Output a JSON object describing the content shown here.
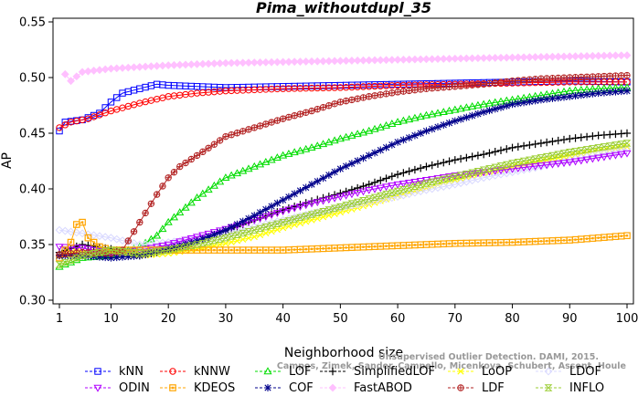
{
  "chart_data": {
    "type": "line",
    "title": "Pima_withoutdupl_35",
    "xlabel": "Neighborhood size",
    "ylabel": "AP",
    "xlim": [
      1,
      100
    ],
    "ylim": [
      0.3,
      0.55
    ],
    "x_ticks": [
      "1",
      "10",
      "20",
      "30",
      "40",
      "50",
      "60",
      "70",
      "80",
      "90",
      "100"
    ],
    "y_ticks": [
      "0.30",
      "0.35",
      "0.40",
      "0.45",
      "0.50",
      "0.55"
    ],
    "grid": false,
    "legend_position": "bottom",
    "watermark": [
      "Campos, Zimek, Sander, Campello, Micenkova, Schubert, Assent, Houle",
      "Unsupervised Outlier Detection. DAMI, 2015."
    ],
    "series": [
      {
        "name": "kNN",
        "color": "#0000ff",
        "marker": "square",
        "points": [
          [
            1,
            0.452
          ],
          [
            2,
            0.46
          ],
          [
            5,
            0.462
          ],
          [
            8,
            0.468
          ],
          [
            10,
            0.478
          ],
          [
            12,
            0.486
          ],
          [
            15,
            0.49
          ],
          [
            18,
            0.494
          ],
          [
            20,
            0.493
          ],
          [
            25,
            0.492
          ],
          [
            30,
            0.491
          ],
          [
            40,
            0.492
          ],
          [
            50,
            0.493
          ],
          [
            60,
            0.494
          ],
          [
            70,
            0.495
          ],
          [
            80,
            0.496
          ],
          [
            90,
            0.497
          ],
          [
            100,
            0.496
          ]
        ]
      },
      {
        "name": "kNNW",
        "color": "#ff0000",
        "marker": "circle",
        "points": [
          [
            1,
            0.455
          ],
          [
            3,
            0.46
          ],
          [
            6,
            0.463
          ],
          [
            10,
            0.47
          ],
          [
            15,
            0.477
          ],
          [
            20,
            0.483
          ],
          [
            25,
            0.486
          ],
          [
            30,
            0.488
          ],
          [
            40,
            0.49
          ],
          [
            50,
            0.491
          ],
          [
            60,
            0.493
          ],
          [
            70,
            0.494
          ],
          [
            80,
            0.495
          ],
          [
            90,
            0.496
          ],
          [
            100,
            0.496
          ]
        ]
      },
      {
        "name": "LOF",
        "color": "#00dd00",
        "marker": "triangle-up",
        "points": [
          [
            1,
            0.33
          ],
          [
            5,
            0.338
          ],
          [
            10,
            0.34
          ],
          [
            15,
            0.348
          ],
          [
            18,
            0.358
          ],
          [
            20,
            0.37
          ],
          [
            25,
            0.392
          ],
          [
            30,
            0.41
          ],
          [
            35,
            0.42
          ],
          [
            40,
            0.43
          ],
          [
            45,
            0.437
          ],
          [
            50,
            0.445
          ],
          [
            55,
            0.452
          ],
          [
            60,
            0.46
          ],
          [
            65,
            0.466
          ],
          [
            70,
            0.471
          ],
          [
            75,
            0.476
          ],
          [
            80,
            0.48
          ],
          [
            85,
            0.484
          ],
          [
            90,
            0.488
          ],
          [
            95,
            0.49
          ],
          [
            100,
            0.491
          ]
        ]
      },
      {
        "name": "SimplifiedLOF",
        "color": "#000000",
        "marker": "plus",
        "points": [
          [
            1,
            0.343
          ],
          [
            5,
            0.35
          ],
          [
            10,
            0.346
          ],
          [
            15,
            0.34
          ],
          [
            20,
            0.345
          ],
          [
            25,
            0.353
          ],
          [
            30,
            0.362
          ],
          [
            35,
            0.372
          ],
          [
            40,
            0.381
          ],
          [
            45,
            0.389
          ],
          [
            50,
            0.396
          ],
          [
            55,
            0.404
          ],
          [
            60,
            0.413
          ],
          [
            65,
            0.42
          ],
          [
            70,
            0.426
          ],
          [
            75,
            0.431
          ],
          [
            80,
            0.437
          ],
          [
            85,
            0.441
          ],
          [
            90,
            0.445
          ],
          [
            95,
            0.448
          ],
          [
            100,
            0.45
          ]
        ]
      },
      {
        "name": "LoOP",
        "color": "#ffff00",
        "marker": "cross",
        "points": [
          [
            1,
            0.34
          ],
          [
            5,
            0.345
          ],
          [
            10,
            0.343
          ],
          [
            15,
            0.34
          ],
          [
            20,
            0.342
          ],
          [
            25,
            0.346
          ],
          [
            30,
            0.351
          ],
          [
            35,
            0.357
          ],
          [
            40,
            0.365
          ],
          [
            45,
            0.372
          ],
          [
            50,
            0.379
          ],
          [
            55,
            0.386
          ],
          [
            60,
            0.394
          ],
          [
            65,
            0.401
          ],
          [
            70,
            0.408
          ],
          [
            75,
            0.414
          ],
          [
            80,
            0.42
          ],
          [
            85,
            0.425
          ],
          [
            90,
            0.43
          ],
          [
            95,
            0.434
          ],
          [
            100,
            0.438
          ]
        ]
      },
      {
        "name": "LDOF",
        "color": "#d8d8ff",
        "marker": "diamond",
        "points": [
          [
            1,
            0.363
          ],
          [
            5,
            0.36
          ],
          [
            10,
            0.356
          ],
          [
            15,
            0.35
          ],
          [
            20,
            0.352
          ],
          [
            25,
            0.355
          ],
          [
            30,
            0.36
          ],
          [
            35,
            0.366
          ],
          [
            40,
            0.372
          ],
          [
            45,
            0.378
          ],
          [
            50,
            0.383
          ],
          [
            55,
            0.388
          ],
          [
            60,
            0.393
          ],
          [
            65,
            0.399
          ],
          [
            70,
            0.404
          ],
          [
            75,
            0.41
          ],
          [
            80,
            0.415
          ],
          [
            85,
            0.42
          ],
          [
            90,
            0.426
          ],
          [
            95,
            0.431
          ],
          [
            100,
            0.436
          ]
        ]
      },
      {
        "name": "ODIN",
        "color": "#b000ff",
        "marker": "triangle-down",
        "points": [
          [
            1,
            0.348
          ],
          [
            5,
            0.347
          ],
          [
            10,
            0.342
          ],
          [
            15,
            0.345
          ],
          [
            20,
            0.35
          ],
          [
            25,
            0.357
          ],
          [
            30,
            0.364
          ],
          [
            35,
            0.372
          ],
          [
            40,
            0.38
          ],
          [
            45,
            0.387
          ],
          [
            50,
            0.393
          ],
          [
            55,
            0.399
          ],
          [
            60,
            0.404
          ],
          [
            65,
            0.408
          ],
          [
            70,
            0.412
          ],
          [
            75,
            0.415
          ],
          [
            80,
            0.418
          ],
          [
            85,
            0.421
          ],
          [
            90,
            0.424
          ],
          [
            95,
            0.428
          ],
          [
            100,
            0.432
          ]
        ]
      },
      {
        "name": "KDEOS",
        "color": "#ffa500",
        "marker": "square-filled",
        "points": [
          [
            1,
            0.338
          ],
          [
            3,
            0.352
          ],
          [
            4,
            0.368
          ],
          [
            5,
            0.37
          ],
          [
            6,
            0.356
          ],
          [
            8,
            0.348
          ],
          [
            10,
            0.345
          ],
          [
            20,
            0.345
          ],
          [
            30,
            0.345
          ],
          [
            40,
            0.345
          ],
          [
            50,
            0.347
          ],
          [
            60,
            0.349
          ],
          [
            70,
            0.351
          ],
          [
            80,
            0.352
          ],
          [
            90,
            0.354
          ],
          [
            100,
            0.358
          ]
        ]
      },
      {
        "name": "COF",
        "color": "#00008b",
        "marker": "asterisk",
        "points": [
          [
            1,
            0.34
          ],
          [
            5,
            0.34
          ],
          [
            10,
            0.338
          ],
          [
            15,
            0.34
          ],
          [
            20,
            0.346
          ],
          [
            25,
            0.353
          ],
          [
            30,
            0.363
          ],
          [
            35,
            0.376
          ],
          [
            40,
            0.39
          ],
          [
            45,
            0.404
          ],
          [
            50,
            0.418
          ],
          [
            55,
            0.43
          ],
          [
            60,
            0.442
          ],
          [
            65,
            0.452
          ],
          [
            70,
            0.461
          ],
          [
            75,
            0.469
          ],
          [
            80,
            0.476
          ],
          [
            85,
            0.48
          ],
          [
            90,
            0.483
          ],
          [
            95,
            0.486
          ],
          [
            100,
            0.488
          ]
        ]
      },
      {
        "name": "FastABOD",
        "color": "#ffc0ff",
        "marker": "diamond-filled",
        "points": [
          [
            2,
            0.503
          ],
          [
            3,
            0.497
          ],
          [
            5,
            0.505
          ],
          [
            10,
            0.508
          ],
          [
            20,
            0.511
          ],
          [
            30,
            0.513
          ],
          [
            40,
            0.514
          ],
          [
            50,
            0.515
          ],
          [
            60,
            0.516
          ],
          [
            70,
            0.517
          ],
          [
            80,
            0.518
          ],
          [
            90,
            0.519
          ],
          [
            100,
            0.52
          ]
        ]
      },
      {
        "name": "LDF",
        "color": "#b22222",
        "marker": "circle-plus",
        "points": [
          [
            1,
            0.341
          ],
          [
            5,
            0.343
          ],
          [
            10,
            0.342
          ],
          [
            12,
            0.345
          ],
          [
            15,
            0.37
          ],
          [
            18,
            0.395
          ],
          [
            20,
            0.41
          ],
          [
            22,
            0.42
          ],
          [
            25,
            0.43
          ],
          [
            28,
            0.44
          ],
          [
            30,
            0.447
          ],
          [
            35,
            0.455
          ],
          [
            40,
            0.463
          ],
          [
            45,
            0.47
          ],
          [
            50,
            0.478
          ],
          [
            55,
            0.483
          ],
          [
            60,
            0.487
          ],
          [
            65,
            0.49
          ],
          [
            70,
            0.492
          ],
          [
            75,
            0.494
          ],
          [
            80,
            0.497
          ],
          [
            85,
            0.499
          ],
          [
            90,
            0.5
          ],
          [
            95,
            0.501
          ],
          [
            100,
            0.502
          ]
        ]
      },
      {
        "name": "INFLO",
        "color": "#9acd32",
        "marker": "hourglass",
        "points": [
          [
            1,
            0.332
          ],
          [
            5,
            0.34
          ],
          [
            10,
            0.345
          ],
          [
            15,
            0.342
          ],
          [
            20,
            0.345
          ],
          [
            25,
            0.35
          ],
          [
            30,
            0.356
          ],
          [
            35,
            0.363
          ],
          [
            40,
            0.37
          ],
          [
            45,
            0.377
          ],
          [
            50,
            0.384
          ],
          [
            55,
            0.391
          ],
          [
            60,
            0.398
          ],
          [
            65,
            0.405
          ],
          [
            70,
            0.411
          ],
          [
            75,
            0.417
          ],
          [
            80,
            0.423
          ],
          [
            85,
            0.428
          ],
          [
            90,
            0.433
          ],
          [
            95,
            0.437
          ],
          [
            100,
            0.441
          ]
        ]
      }
    ]
  }
}
